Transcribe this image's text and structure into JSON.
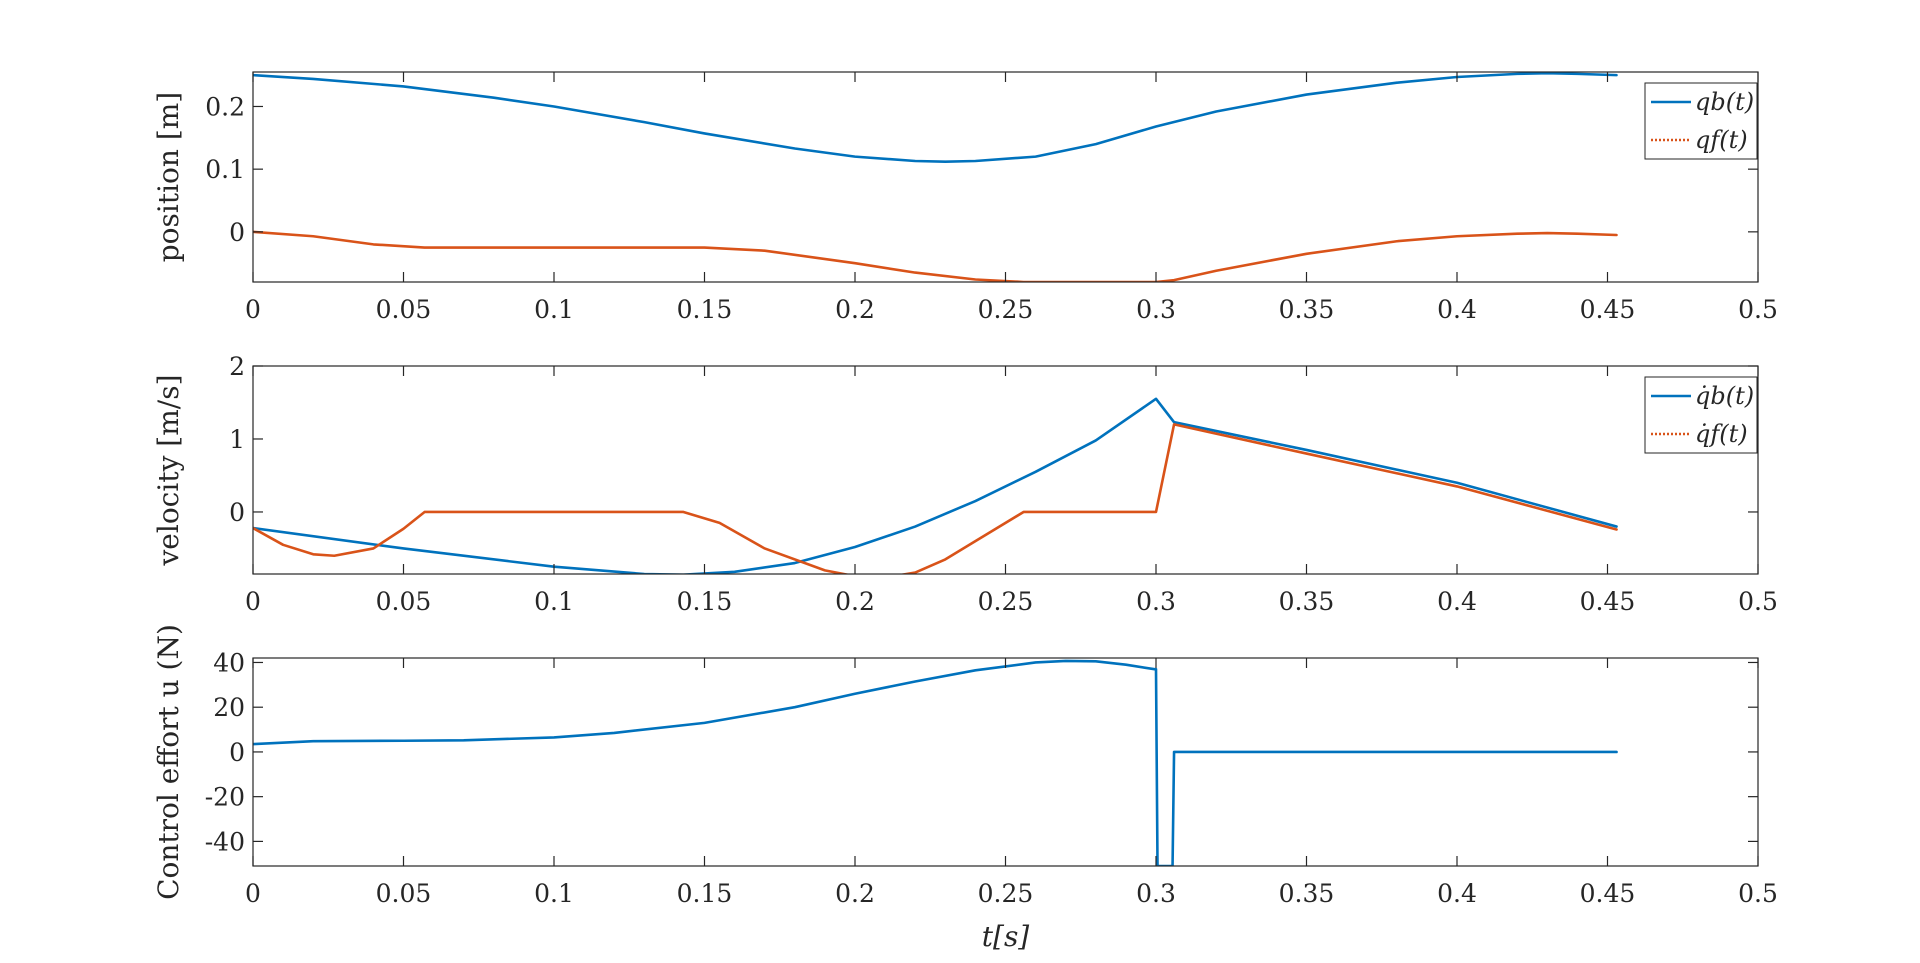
{
  "chart_data": [
    {
      "type": "line",
      "ylabel": "position [m]",
      "xlabel": "",
      "xlim": [
        0,
        0.5
      ],
      "ylim": [
        -0.08,
        0.255
      ],
      "xticks": [
        0,
        0.05,
        0.1,
        0.15,
        0.2,
        0.25,
        0.3,
        0.35,
        0.4,
        0.45,
        0.5
      ],
      "xtick_labels": [
        "0",
        "0.05",
        "0.1",
        "0.15",
        "0.2",
        "0.25",
        "0.3",
        "0.35",
        "0.4",
        "0.45",
        "0.5"
      ],
      "yticks": [
        0,
        0.1,
        0.2
      ],
      "ytick_labels": [
        "0",
        "0.1",
        "0.2"
      ],
      "grid": false,
      "legend": "top-right",
      "series": [
        {
          "name": "q_b(t)",
          "legend_label": "qb(t)",
          "color": "#0072BD",
          "x": [
            0,
            0.02,
            0.05,
            0.08,
            0.1,
            0.13,
            0.15,
            0.18,
            0.2,
            0.22,
            0.23,
            0.24,
            0.26,
            0.28,
            0.3,
            0.32,
            0.35,
            0.38,
            0.4,
            0.42,
            0.43,
            0.44,
            0.453
          ],
          "y": [
            0.25,
            0.244,
            0.232,
            0.214,
            0.2,
            0.175,
            0.157,
            0.133,
            0.12,
            0.113,
            0.112,
            0.113,
            0.12,
            0.14,
            0.168,
            0.192,
            0.219,
            0.238,
            0.247,
            0.252,
            0.253,
            0.252,
            0.25
          ]
        },
        {
          "name": "q_f(t)",
          "legend_label": "qf(t)",
          "color": "#D95319",
          "x": [
            0,
            0.02,
            0.04,
            0.057,
            0.1,
            0.15,
            0.17,
            0.2,
            0.22,
            0.24,
            0.256,
            0.28,
            0.3,
            0.306,
            0.32,
            0.35,
            0.38,
            0.4,
            0.42,
            0.43,
            0.44,
            0.453
          ],
          "y": [
            0,
            -0.007,
            -0.02,
            -0.025,
            -0.025,
            -0.025,
            -0.03,
            -0.05,
            -0.065,
            -0.076,
            -0.08,
            -0.08,
            -0.08,
            -0.077,
            -0.062,
            -0.035,
            -0.015,
            -0.007,
            -0.003,
            -0.002,
            -0.003,
            -0.005
          ]
        }
      ]
    },
    {
      "type": "line",
      "ylabel": "velocity [m/s]",
      "xlabel": "",
      "xlim": [
        0,
        0.5
      ],
      "ylim": [
        -0.85,
        2
      ],
      "xticks": [
        0,
        0.05,
        0.1,
        0.15,
        0.2,
        0.25,
        0.3,
        0.35,
        0.4,
        0.45,
        0.5
      ],
      "xtick_labels": [
        "0",
        "0.05",
        "0.1",
        "0.15",
        "0.2",
        "0.25",
        "0.3",
        "0.35",
        "0.4",
        "0.45",
        "0.5"
      ],
      "yticks": [
        0,
        1,
        2
      ],
      "ytick_labels": [
        "0",
        "1",
        "2"
      ],
      "grid": false,
      "legend": "top-right",
      "series": [
        {
          "name": "qdot_b(t)",
          "legend_label": "q̇b(t)",
          "color": "#0072BD",
          "x": [
            0,
            0.05,
            0.1,
            0.13,
            0.143,
            0.16,
            0.18,
            0.2,
            0.22,
            0.24,
            0.26,
            0.28,
            0.3,
            0.306,
            0.35,
            0.4,
            0.453
          ],
          "y": [
            -0.22,
            -0.5,
            -0.75,
            -0.85,
            -0.86,
            -0.82,
            -0.7,
            -0.48,
            -0.2,
            0.15,
            0.55,
            0.98,
            1.55,
            1.23,
            0.85,
            0.4,
            -0.2
          ]
        },
        {
          "name": "qdot_f(t)",
          "legend_label": "q̇f(t)",
          "color": "#D95319",
          "x": [
            0,
            0.01,
            0.02,
            0.027,
            0.04,
            0.05,
            0.057,
            0.1,
            0.143,
            0.155,
            0.17,
            0.19,
            0.2,
            0.21,
            0.22,
            0.23,
            0.24,
            0.256,
            0.3,
            0.306,
            0.35,
            0.4,
            0.453
          ],
          "y": [
            -0.22,
            -0.45,
            -0.58,
            -0.6,
            -0.5,
            -0.23,
            0,
            0,
            0,
            -0.15,
            -0.5,
            -0.8,
            -0.88,
            -0.9,
            -0.83,
            -0.65,
            -0.4,
            0,
            0,
            1.2,
            0.8,
            0.35,
            -0.24
          ]
        }
      ]
    },
    {
      "type": "line",
      "ylabel": "Control effort u (N)",
      "xlabel": "t[s]",
      "xlim": [
        0,
        0.5
      ],
      "ylim": [
        -51,
        42
      ],
      "xticks": [
        0,
        0.05,
        0.1,
        0.15,
        0.2,
        0.25,
        0.3,
        0.35,
        0.4,
        0.45,
        0.5
      ],
      "xtick_labels": [
        "0",
        "0.05",
        "0.1",
        "0.15",
        "0.2",
        "0.25",
        "0.3",
        "0.35",
        "0.4",
        "0.45",
        "0.5"
      ],
      "yticks": [
        -40,
        -20,
        0,
        20,
        40
      ],
      "ytick_labels": [
        "-40",
        "-20",
        "0",
        "20",
        "40"
      ],
      "grid": false,
      "legend": "none",
      "series": [
        {
          "name": "u(t)",
          "color": "#0072BD",
          "x": [
            0,
            0.02,
            0.05,
            0.07,
            0.1,
            0.12,
            0.15,
            0.18,
            0.2,
            0.22,
            0.24,
            0.26,
            0.27,
            0.28,
            0.29,
            0.2995,
            0.3,
            0.3005,
            0.3055,
            0.306,
            0.35,
            0.4,
            0.453
          ],
          "y": [
            3.5,
            4.8,
            5,
            5.2,
            6.5,
            8.5,
            13,
            20,
            26,
            31.5,
            36.5,
            40,
            40.7,
            40.5,
            39,
            37,
            37,
            -51,
            -51,
            0,
            0,
            0,
            0
          ]
        }
      ]
    }
  ]
}
